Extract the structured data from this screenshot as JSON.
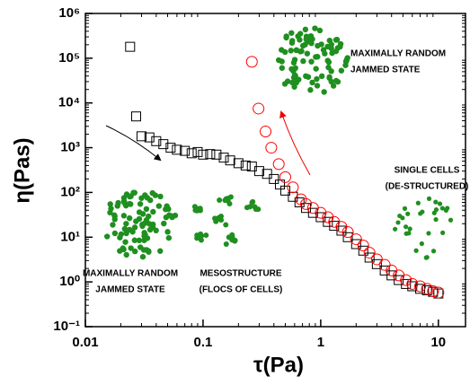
{
  "chart_data": {
    "type": "scatter",
    "x_label": "τ(Pa)",
    "y_label": "η(Pas)",
    "log_x": true,
    "log_y": true,
    "xlim": [
      0.01,
      17
    ],
    "ylim": [
      0.1,
      1000000
    ],
    "xticks": [
      0.01,
      0.1,
      1,
      10
    ],
    "yticks": [
      {
        "value": 0.1,
        "label": "10⁻¹"
      },
      {
        "value": 1,
        "label": "10⁰"
      },
      {
        "value": 10,
        "label": "10¹"
      },
      {
        "value": 100,
        "label": "10²"
      },
      {
        "value": 1000,
        "label": "10³"
      },
      {
        "value": 10000,
        "label": "10⁴"
      },
      {
        "value": 100000,
        "label": "10⁵"
      },
      {
        "value": 1000000,
        "label": "10⁶"
      }
    ],
    "series": [
      {
        "marker": "square",
        "color": "#000000",
        "x": [
          0.024,
          0.027,
          0.03,
          0.035,
          0.04,
          0.046,
          0.053,
          0.06,
          0.07,
          0.08,
          0.09,
          0.1,
          0.115,
          0.13,
          0.15,
          0.17,
          0.2,
          0.23,
          0.26,
          0.3,
          0.35,
          0.4,
          0.45,
          0.5,
          0.58,
          0.66,
          0.75,
          0.86,
          1.0,
          1.15,
          1.3,
          1.5,
          1.7,
          2,
          2.3,
          2.6,
          3,
          3.5,
          4,
          4.6,
          5.3,
          6,
          7,
          8,
          9,
          10
        ],
        "values": [
          180000,
          5000,
          1800,
          1700,
          1400,
          1200,
          1000,
          900,
          850,
          750,
          800,
          700,
          720,
          700,
          600,
          520,
          450,
          400,
          380,
          300,
          260,
          200,
          150,
          110,
          80,
          60,
          45,
          35,
          28,
          22,
          18,
          14,
          10,
          7,
          5,
          3.5,
          2.5,
          1.8,
          1.4,
          1.1,
          0.9,
          0.8,
          0.7,
          0.65,
          0.6,
          0.55
        ]
      },
      {
        "marker": "circle",
        "color": "#ff0000",
        "x": [
          0.26,
          0.296,
          0.34,
          0.38,
          0.44,
          0.5,
          0.58,
          0.68,
          0.75,
          0.86,
          1.0,
          1.15,
          1.3,
          1.5,
          1.7,
          2,
          2.3,
          2.6,
          3,
          3.5,
          4,
          4.6,
          5.3,
          6,
          7,
          8,
          9,
          10
        ],
        "values": [
          83000,
          7500,
          2300,
          1000,
          430,
          220,
          130,
          70,
          55,
          45,
          35,
          28,
          22,
          17,
          13,
          9,
          6.5,
          4.5,
          3.2,
          2.4,
          1.8,
          1.4,
          1.1,
          0.9,
          0.8,
          0.7,
          0.62,
          0.58
        ]
      }
    ],
    "annotations": [
      {
        "lines": [
          "MAXIMALLY RANDOM",
          "JAMMED STATE"
        ]
      },
      {
        "lines": [
          "SINGLE CELLS",
          "(DE-STRUCTURED)"
        ]
      },
      {
        "lines": [
          "MAXIMALLY RANDOM",
          "JAMMED STATE"
        ]
      },
      {
        "lines": [
          "MESOSTRUCTURE",
          "(FLOCS OF CELLS)"
        ]
      }
    ]
  }
}
